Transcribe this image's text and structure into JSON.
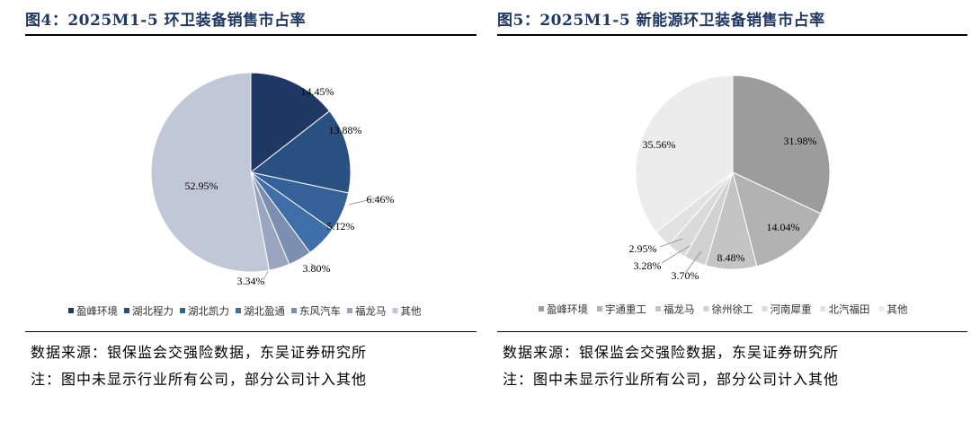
{
  "chart_data": [
    {
      "type": "pie",
      "title": "图4：2025M1-5 环卫装备销售市占率",
      "categories": [
        "盈峰环境",
        "湖北程力",
        "湖北凯力",
        "湖北盈通",
        "东风汽车",
        "福龙马",
        "其他"
      ],
      "values": [
        14.45,
        13.88,
        6.46,
        5.12,
        3.8,
        3.34,
        52.95
      ],
      "labels": [
        "14.45%",
        "13.88%",
        "6.46%",
        "5.12%",
        "3.80%",
        "3.34%",
        "52.95%"
      ],
      "colors": [
        "#203864",
        "#2a5082",
        "#35619a",
        "#3f6fa8",
        "#7c8fb0",
        "#9aa6c0",
        "#c0c7d6"
      ],
      "legend_position": "bottom",
      "source": "数据来源：银保监会交强险数据，东吴证券研究所",
      "note": "注：图中未显示行业所有公司，部分公司计入其他"
    },
    {
      "type": "pie",
      "title": "图5：2025M1-5 新能源环卫装备销售市占率",
      "categories": [
        "盈峰环境",
        "宇通重工",
        "福龙马",
        "徐州徐工",
        "河南犀重",
        "北汽福田",
        "其他"
      ],
      "values": [
        31.98,
        14.04,
        8.48,
        3.7,
        3.28,
        2.95,
        35.56
      ],
      "labels": [
        "31.98%",
        "14.04%",
        "8.48%",
        "3.70%",
        "3.28%",
        "2.95%",
        "35.56%"
      ],
      "colors": [
        "#9c9c9c",
        "#b2b2b2",
        "#c4c4c4",
        "#d1d1d1",
        "#dadada",
        "#e2e2e2",
        "#ececec"
      ],
      "legend_position": "bottom",
      "source": "数据来源：银保监会交强险数据，东吴证券研究所",
      "note": "注：图中未显示行业所有公司，部分公司计入其他"
    }
  ]
}
